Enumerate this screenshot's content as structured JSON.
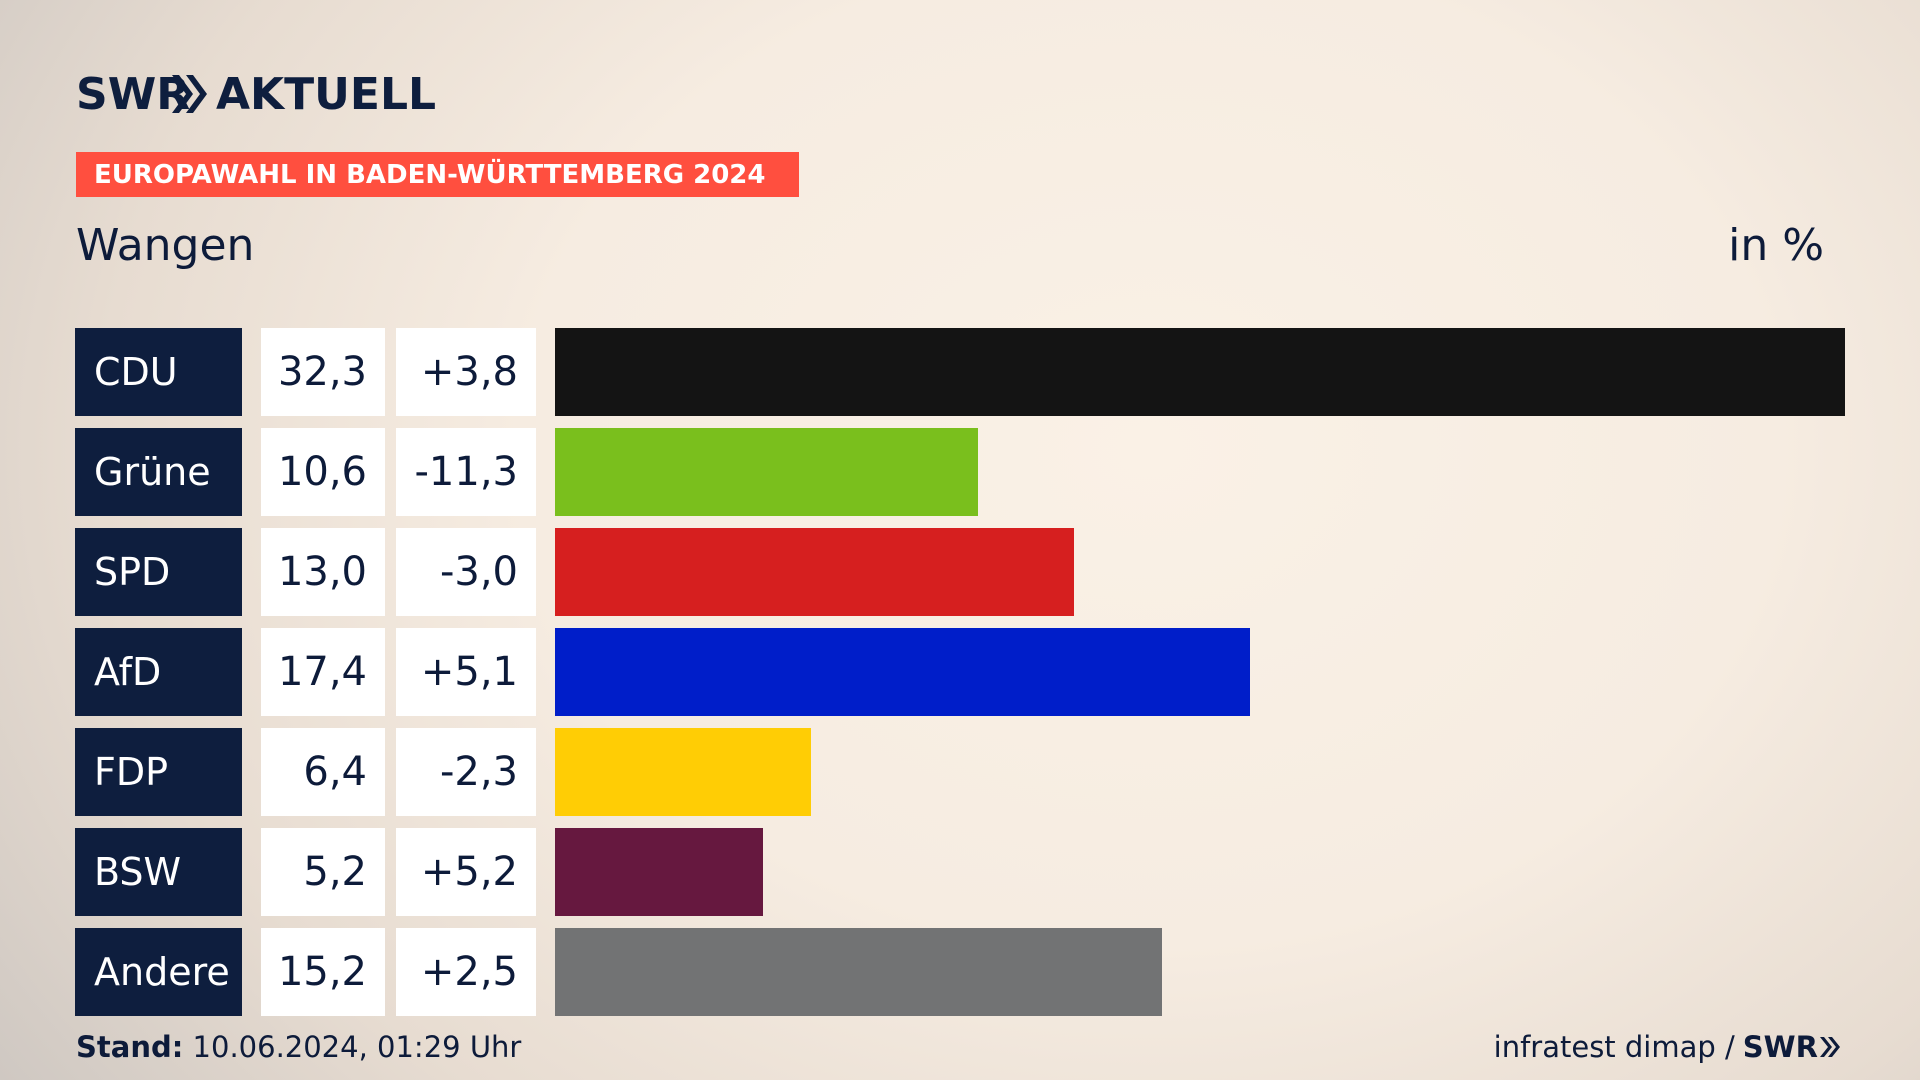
{
  "brand": {
    "logo_text": "SWR AKTUELL",
    "colors": {
      "navy": "#0e1e3e",
      "kicker": "#ff4f3f"
    }
  },
  "header": {
    "kicker": "EUROPAWAHL IN BADEN-WÜRTTEMBERG 2024",
    "place": "Wangen",
    "unit": "in %"
  },
  "chart_data": {
    "type": "bar",
    "orientation": "horizontal",
    "categories": [
      "CDU",
      "Grüne",
      "SPD",
      "AfD",
      "FDP",
      "BSW",
      "Andere"
    ],
    "values": [
      32.3,
      10.6,
      13.0,
      17.4,
      6.4,
      5.2,
      15.2
    ],
    "value_labels": [
      "32,3",
      "10,6",
      "13,0",
      "17,4",
      "6,4",
      "5,2",
      "15,2"
    ],
    "changes": [
      3.8,
      -11.3,
      -3.0,
      5.1,
      -2.3,
      5.2,
      2.5
    ],
    "change_labels": [
      "+3,8",
      "-11,3",
      "-3,0",
      "+5,1",
      "-2,3",
      "+5,2",
      "+2,5"
    ],
    "colors": [
      "#141414",
      "#7abf1d",
      "#d61f1f",
      "#001ec9",
      "#ffcd05",
      "#66183f",
      "#727374"
    ],
    "title": "Wangen",
    "xlabel": "",
    "ylabel": "in %",
    "grid": false
  },
  "footer": {
    "stand_label": "Stand:",
    "stand_value": " 10.06.2024, 01:29 Uhr",
    "source": "infratest dimap /",
    "source_brand": "SWR"
  }
}
